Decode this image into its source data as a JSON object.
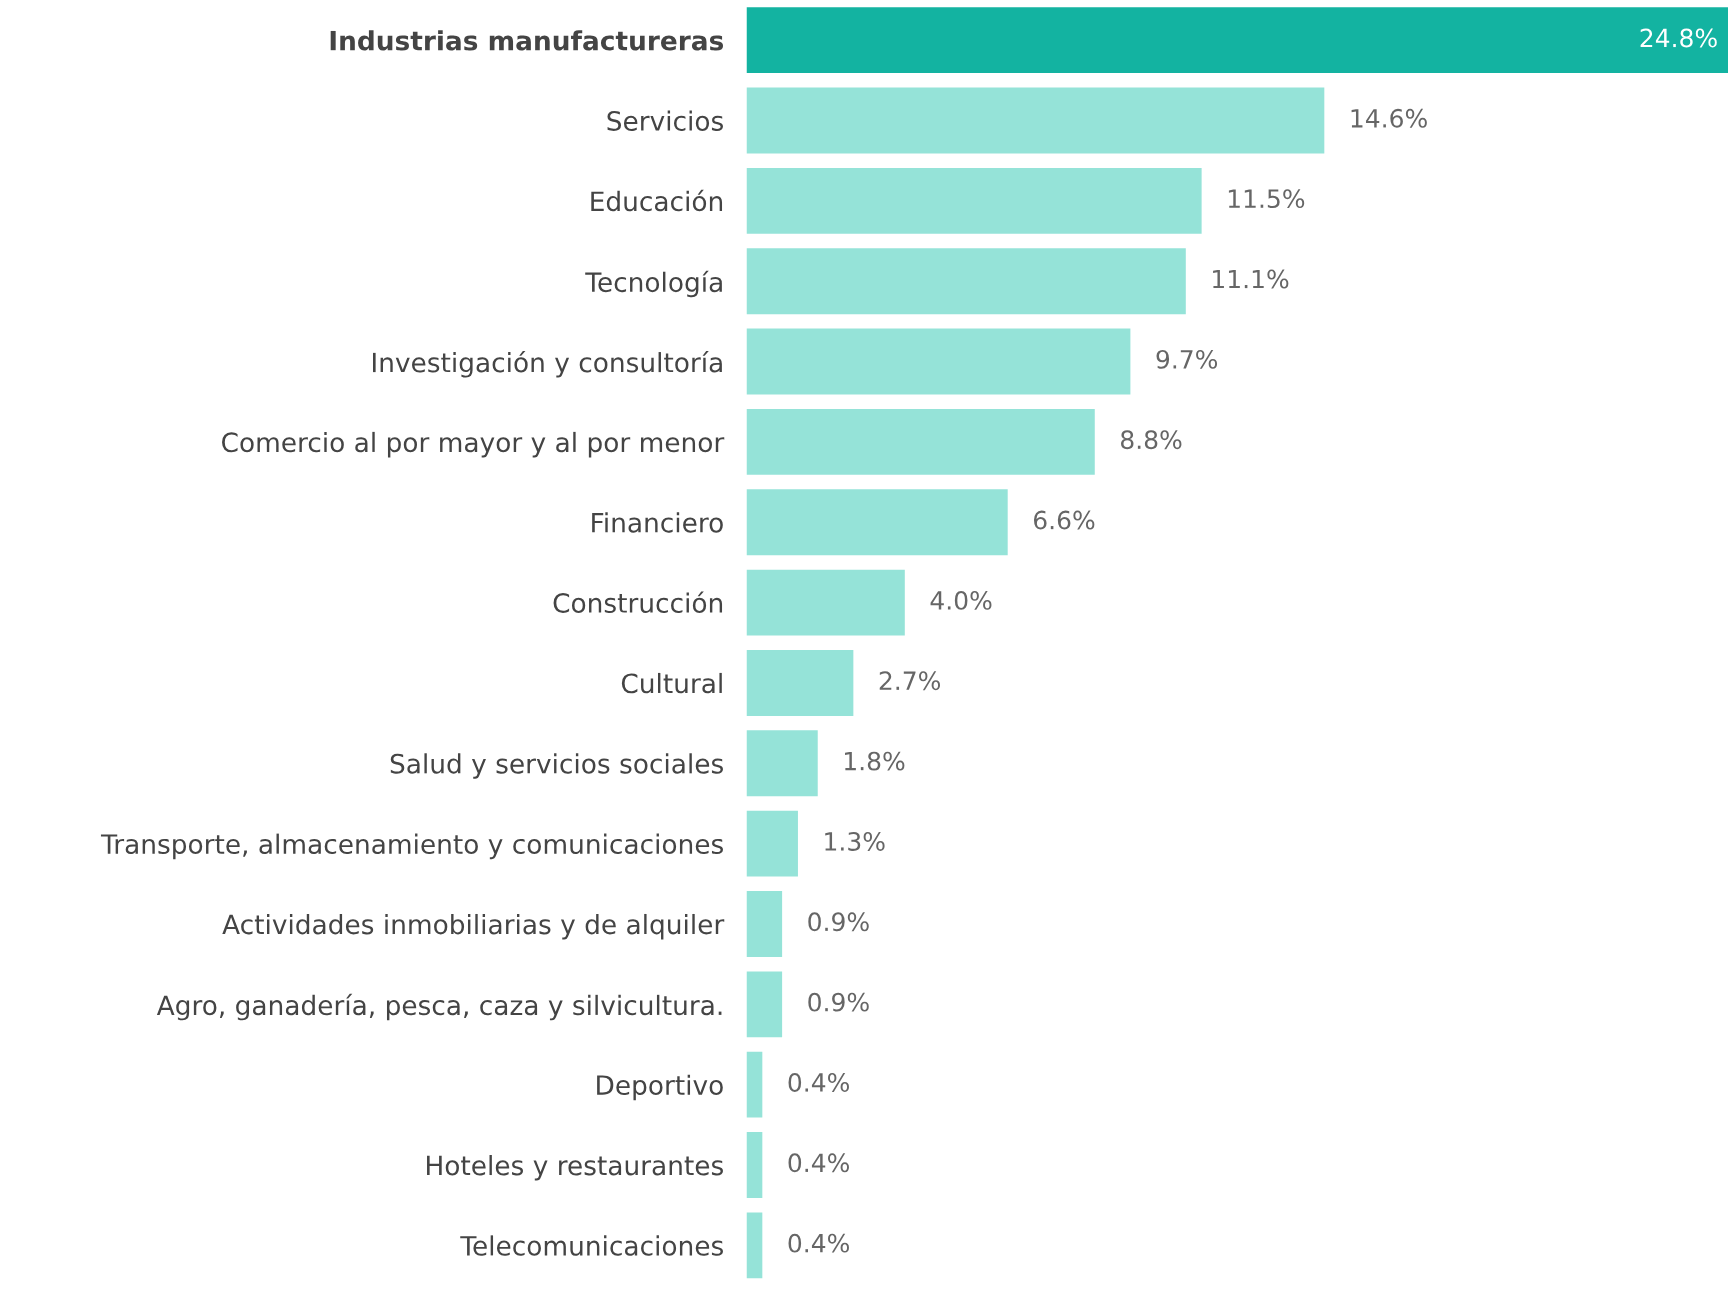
{
  "chart_data": {
    "type": "bar",
    "orientation": "horizontal",
    "categories": [
      "Industrias manufactureras",
      "Servicios",
      "Educación",
      "Tecnología",
      "Investigación y consultoría",
      "Comercio al por mayor y al por menor",
      "Financiero",
      "Construcción",
      "Cultural",
      "Salud y servicios sociales",
      "Transporte, almacenamiento y comunicaciones",
      "Actividades inmobiliarias y de alquiler",
      "Agro, ganadería, pesca, caza y silvicultura.",
      "Deportivo",
      "Hoteles y restaurantes",
      "Telecomunicaciones"
    ],
    "values": [
      24.8,
      14.6,
      11.5,
      11.1,
      9.7,
      8.8,
      6.6,
      4.0,
      2.7,
      1.8,
      1.3,
      0.9,
      0.9,
      0.4,
      0.4,
      0.4
    ],
    "value_labels": [
      "24.8%",
      "14.6%",
      "11.5%",
      "11.1%",
      "9.7%",
      "8.8%",
      "6.6%",
      "4.0%",
      "2.7%",
      "1.8%",
      "1.3%",
      "0.9%",
      "0.9%",
      "0.4%",
      "0.4%",
      "0.4%"
    ],
    "colors": [
      "#13b3a1",
      "#95e3d8",
      "#95e3d8",
      "#95e3d8",
      "#95e3d8",
      "#95e3d8",
      "#95e3d8",
      "#95e3d8",
      "#95e3d8",
      "#95e3d8",
      "#95e3d8",
      "#95e3d8",
      "#95e3d8",
      "#95e3d8",
      "#95e3d8",
      "#95e3d8"
    ],
    "grid": false,
    "legend": false
  }
}
